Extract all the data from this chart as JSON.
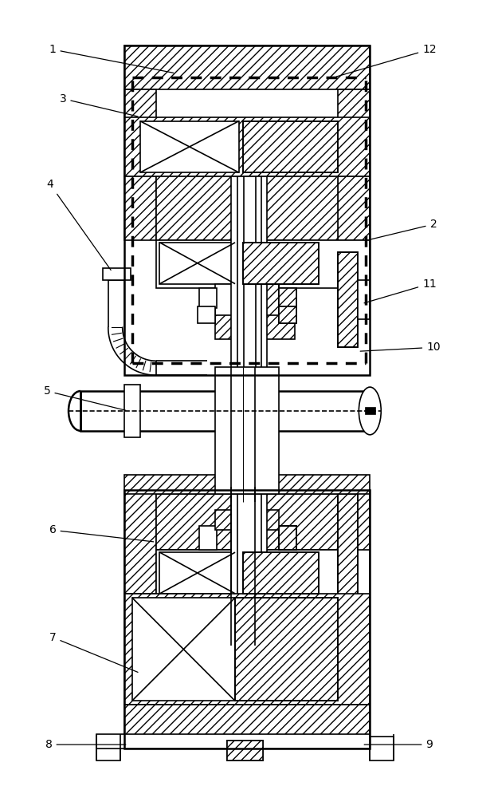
{
  "figsize": [
    6.2,
    10.0
  ],
  "dpi": 100,
  "background": "#ffffff",
  "line_color": "#000000"
}
